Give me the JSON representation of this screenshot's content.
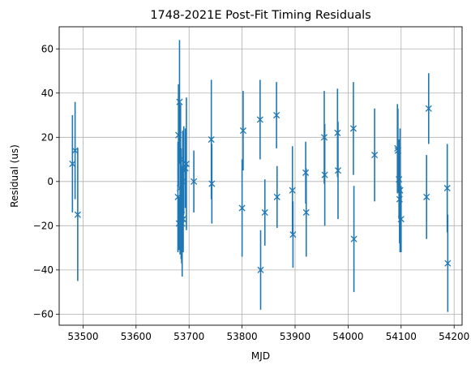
{
  "chart_data": {
    "type": "scatter",
    "title": "1748-2021E Post-Fit Timing Residuals",
    "xlabel": "MJD",
    "ylabel": "Residual (us)",
    "xlim": [
      53455,
      54215
    ],
    "ylim": [
      -65,
      70
    ],
    "xticks": [
      53500,
      53600,
      53700,
      53800,
      53900,
      54000,
      54100,
      54200
    ],
    "yticks": [
      -60,
      -40,
      -20,
      0,
      20,
      40,
      60
    ],
    "grid": true,
    "marker": "x",
    "color": "#1f77b4",
    "points": [
      {
        "x": 53480,
        "y": 8,
        "err": 22
      },
      {
        "x": 53485,
        "y": 14,
        "err": 22
      },
      {
        "x": 53490,
        "y": -15,
        "err": 30
      },
      {
        "x": 53679,
        "y": -7,
        "err": 25
      },
      {
        "x": 53680,
        "y": 21,
        "err": 23
      },
      {
        "x": 53681,
        "y": -19,
        "err": 12
      },
      {
        "x": 53682,
        "y": 36,
        "err": 28
      },
      {
        "x": 53683,
        "y": -3,
        "err": 30
      },
      {
        "x": 53684,
        "y": 10,
        "err": 25
      },
      {
        "x": 53685,
        "y": -10,
        "err": 25
      },
      {
        "x": 53686,
        "y": -15,
        "err": 22
      },
      {
        "x": 53687,
        "y": -19,
        "err": 24
      },
      {
        "x": 53688,
        "y": 0,
        "err": 23
      },
      {
        "x": 53689,
        "y": -17,
        "err": 15
      },
      {
        "x": 53690,
        "y": 5,
        "err": 20
      },
      {
        "x": 53693,
        "y": 6,
        "err": 18
      },
      {
        "x": 53695,
        "y": 8,
        "err": 30
      },
      {
        "x": 53709,
        "y": 0,
        "err": 14
      },
      {
        "x": 53742,
        "y": 19,
        "err": 27
      },
      {
        "x": 53743,
        "y": -1,
        "err": 18
      },
      {
        "x": 53800,
        "y": -12,
        "err": 22
      },
      {
        "x": 53802,
        "y": 23,
        "err": 18
      },
      {
        "x": 53834,
        "y": 28,
        "err": 18
      },
      {
        "x": 53835,
        "y": -40,
        "err": 18
      },
      {
        "x": 53843,
        "y": -14,
        "err": 15
      },
      {
        "x": 53865,
        "y": 30,
        "err": 15
      },
      {
        "x": 53866,
        "y": -7,
        "err": 14
      },
      {
        "x": 53895,
        "y": -4,
        "err": 20
      },
      {
        "x": 53896,
        "y": -24,
        "err": 15
      },
      {
        "x": 53920,
        "y": 4,
        "err": 14
      },
      {
        "x": 53921,
        "y": -14,
        "err": 20
      },
      {
        "x": 53955,
        "y": 20,
        "err": 21
      },
      {
        "x": 53956,
        "y": 3,
        "err": 23
      },
      {
        "x": 53980,
        "y": 22,
        "err": 20
      },
      {
        "x": 53981,
        "y": 5,
        "err": 22
      },
      {
        "x": 54010,
        "y": 24,
        "err": 21
      },
      {
        "x": 54011,
        "y": -26,
        "err": 24
      },
      {
        "x": 54050,
        "y": 12,
        "err": 21
      },
      {
        "x": 54093,
        "y": 15,
        "err": 20
      },
      {
        "x": 54094,
        "y": 14,
        "err": 19
      },
      {
        "x": 54096,
        "y": 1,
        "err": 18
      },
      {
        "x": 54097,
        "y": -8,
        "err": 20
      },
      {
        "x": 54098,
        "y": -4,
        "err": 28
      },
      {
        "x": 54100,
        "y": -17,
        "err": 15
      },
      {
        "x": 54148,
        "y": -7,
        "err": 19
      },
      {
        "x": 54152,
        "y": 33,
        "err": 16
      },
      {
        "x": 54187,
        "y": -3,
        "err": 20
      },
      {
        "x": 54188,
        "y": -37,
        "err": 22
      }
    ]
  }
}
